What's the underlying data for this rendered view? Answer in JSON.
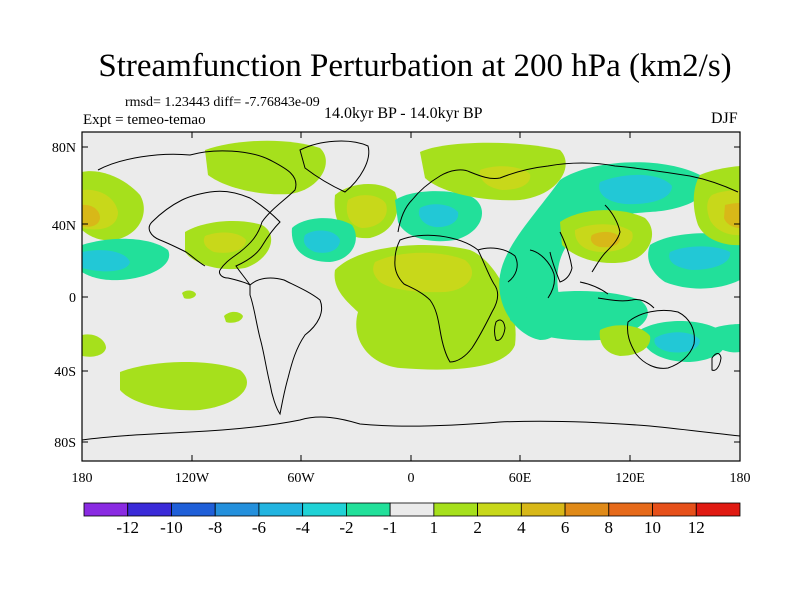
{
  "header": {
    "title": "Streamfunction Perturbation at 200 hPa (km2/s)",
    "stats": "rmsd= 1.23443 diff= -7.76843e-09",
    "experiment": "Expt = temeo-temao",
    "period": "14.0kyr BP - 14.0kyr BP",
    "season": "DJF"
  },
  "axes": {
    "lat_labels": [
      "80N",
      "40N",
      "0",
      "40S",
      "80S"
    ],
    "lon_labels": [
      "180",
      "120W",
      "60W",
      "0",
      "60E",
      "120E",
      "180"
    ]
  },
  "colorbar": {
    "labels": [
      "-12",
      "-10",
      "-8",
      "-6",
      "-4",
      "-2",
      "-1",
      "1",
      "2",
      "4",
      "6",
      "8",
      "10",
      "12"
    ],
    "colors": [
      "#8a2be2",
      "#3a2ad8",
      "#1f5fd8",
      "#2490dc",
      "#22b4e0",
      "#20d2d6",
      "#22e09a",
      "#ebebeb",
      "#a6e01c",
      "#c8d81a",
      "#d8b818",
      "#e08a18",
      "#e66a1a",
      "#e6501a",
      "#e01a12"
    ]
  },
  "map": {
    "background": "#ebebeb",
    "contour_levels": {
      "light_green": "#a6e01c",
      "olive": "#c8d81a",
      "orange": "#d8b818",
      "teal": "#22e09a",
      "cyan": "#22c8d6"
    }
  }
}
